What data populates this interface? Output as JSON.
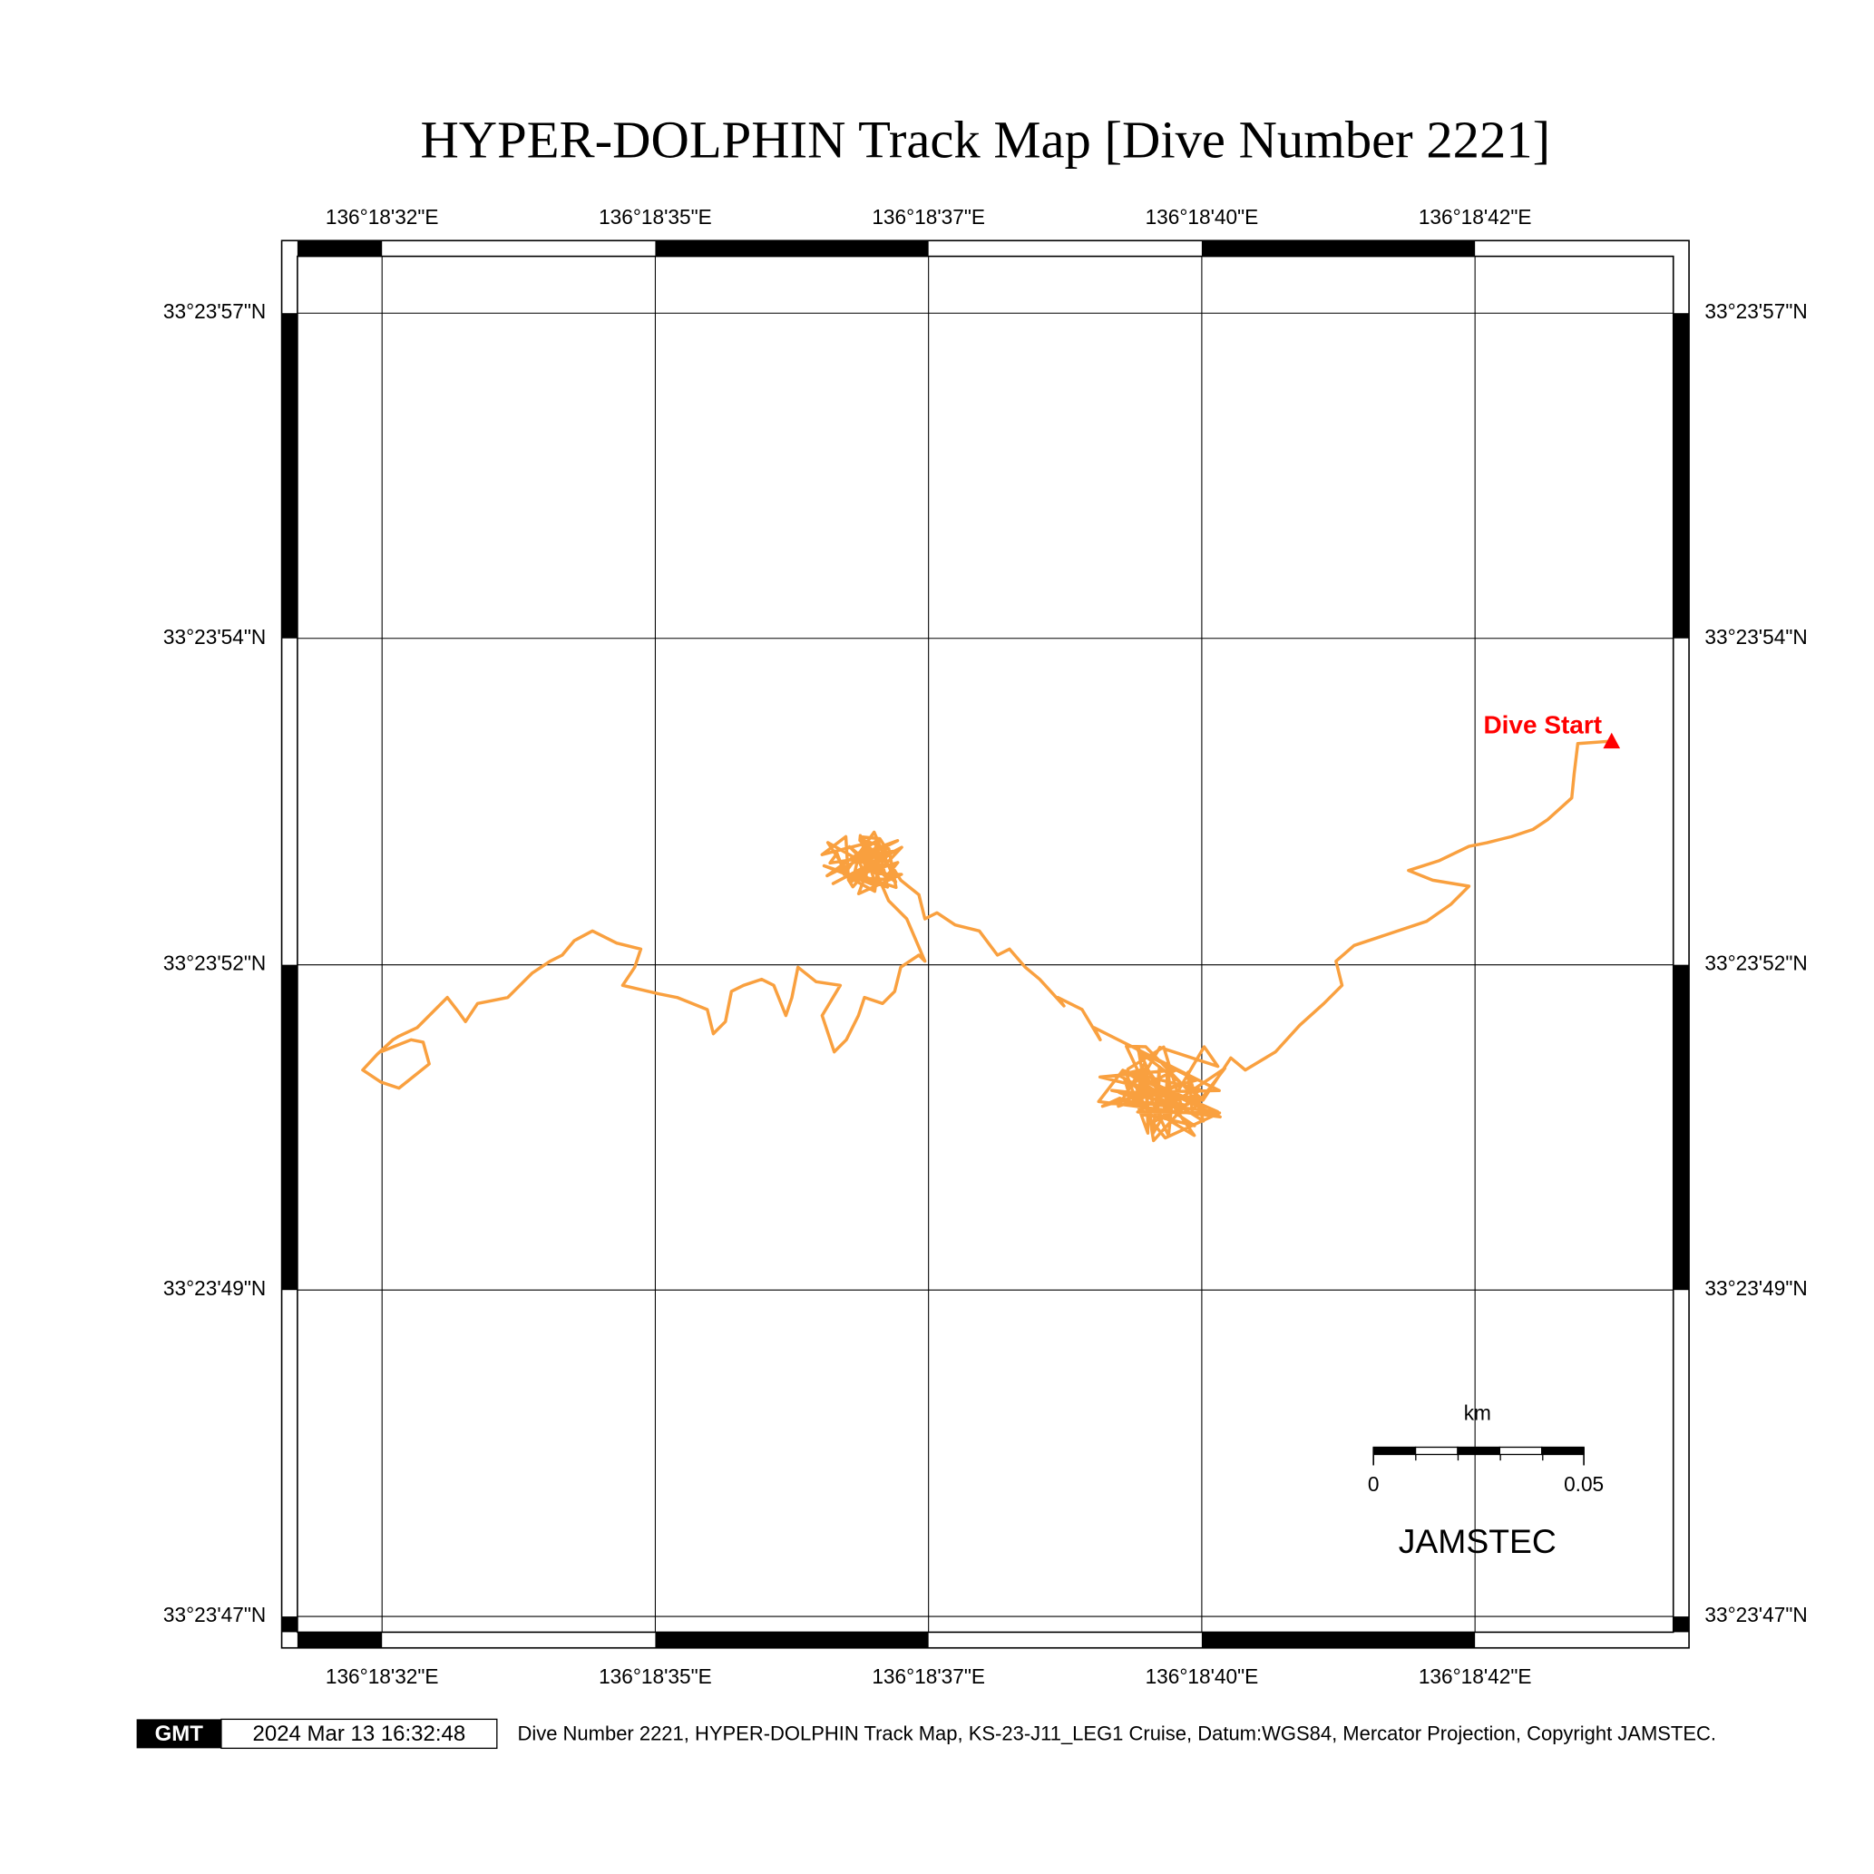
{
  "title": "HYPER-DOLPHIN Track Map [Dive Number 2221]",
  "map": {
    "lon_labels": [
      "136°18'32\"E",
      "136°18'35\"E",
      "136°18'37\"E",
      "136°18'40\"E",
      "136°18'42\"E"
    ],
    "lat_labels": [
      "33°23'57\"N",
      "33°23'54\"N",
      "33°23'52\"N",
      "33°23'49\"N",
      "33°23'47\"N"
    ],
    "start_label": "Dive Start",
    "scale_bar": {
      "unit": "km",
      "start": "0",
      "end": "0.05"
    },
    "credit": "JAMSTEC"
  },
  "footer": {
    "logo": "GMT",
    "timestamp": "2024 Mar 13 16:32:48",
    "caption": "Dive Number 2221, HYPER-DOLPHIN Track Map, KS-23-J11_LEG1 Cruise, Datum:WGS84, Mercator Projection, Copyright JAMSTEC."
  }
}
